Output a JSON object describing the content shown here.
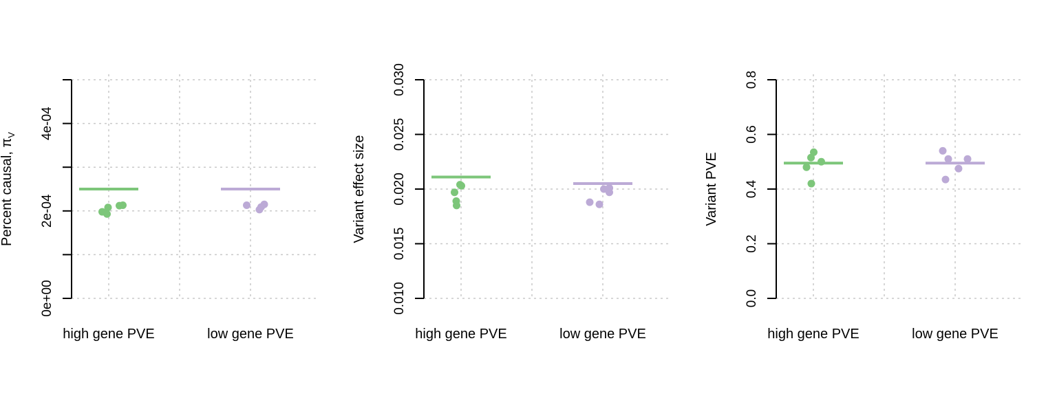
{
  "colors": {
    "green": "#7dc67a",
    "purple": "#bcaad6"
  },
  "chart_data": [
    {
      "type": "scatter",
      "title": "",
      "xlabel": "",
      "ylabel": "Percent causal, π",
      "ylabel_sub": "V",
      "categories": [
        "high gene PVE",
        "low gene PVE"
      ],
      "ylim": [
        0,
        0.0005
      ],
      "yticks": [
        0,
        0.0001,
        0.0002,
        0.0003,
        0.0004,
        0.0005
      ],
      "ytick_labels": [
        "0e+00",
        "",
        "2e-04",
        "",
        "4e-04",
        ""
      ],
      "grid": true,
      "series": [
        {
          "category": "high gene PVE",
          "color": "#7dc67a",
          "mean": 0.00025,
          "points": [
            [
              -0.19,
              0.000198
            ],
            [
              -0.05,
              0.000193
            ],
            [
              -0.02,
              0.000208
            ],
            [
              0.31,
              0.000212
            ],
            [
              0.41,
              0.000213
            ]
          ]
        },
        {
          "category": "low gene PVE",
          "color": "#bcaad6",
          "mean": 0.00025,
          "points": [
            [
              -0.11,
              0.000213
            ],
            [
              0.26,
              0.000203
            ],
            [
              0.31,
              0.000209
            ],
            [
              0.4,
              0.000215
            ]
          ]
        }
      ]
    },
    {
      "type": "scatter",
      "title": "",
      "xlabel": "",
      "ylabel": "Variant effect size",
      "categories": [
        "high gene PVE",
        "low gene PVE"
      ],
      "ylim": [
        0.01,
        0.03
      ],
      "yticks": [
        0.01,
        0.015,
        0.02,
        0.025,
        0.03
      ],
      "ytick_labels": [
        "0.010",
        "0.015",
        "0.020",
        "0.025",
        "0.030"
      ],
      "grid": true,
      "series": [
        {
          "category": "high gene PVE",
          "color": "#7dc67a",
          "mean": 0.0211,
          "points": [
            [
              -0.19,
              0.0197
            ],
            [
              -0.14,
              0.0189
            ],
            [
              -0.13,
              0.0185
            ],
            [
              -0.03,
              0.0204
            ],
            [
              0.01,
              0.0203
            ]
          ]
        },
        {
          "category": "low gene PVE",
          "color": "#bcaad6",
          "mean": 0.0205,
          "points": [
            [
              -0.38,
              0.0188
            ],
            [
              -0.1,
              0.0186
            ],
            [
              0.03,
              0.02
            ],
            [
              0.19,
              0.0201
            ],
            [
              0.19,
              0.0197
            ]
          ]
        }
      ]
    },
    {
      "type": "scatter",
      "title": "",
      "xlabel": "",
      "ylabel": "Variant PVE",
      "categories": [
        "high gene PVE",
        "low gene PVE"
      ],
      "ylim": [
        0,
        0.8
      ],
      "yticks": [
        0,
        0.2,
        0.4,
        0.6,
        0.8
      ],
      "ytick_labels": [
        "0.0",
        "0.2",
        "0.4",
        "0.6",
        "0.8"
      ],
      "grid": true,
      "series": [
        {
          "category": "high gene PVE",
          "color": "#7dc67a",
          "mean": 0.495,
          "points": [
            [
              -0.2,
              0.48
            ],
            [
              -0.06,
              0.42
            ],
            [
              -0.07,
              0.515
            ],
            [
              0.01,
              0.535
            ],
            [
              0.23,
              0.5
            ]
          ]
        },
        {
          "category": "low gene PVE",
          "color": "#bcaad6",
          "mean": 0.495,
          "points": [
            [
              -0.36,
              0.54
            ],
            [
              -0.28,
              0.435
            ],
            [
              -0.2,
              0.51
            ],
            [
              0.1,
              0.475
            ],
            [
              0.36,
              0.51
            ]
          ]
        }
      ]
    }
  ]
}
